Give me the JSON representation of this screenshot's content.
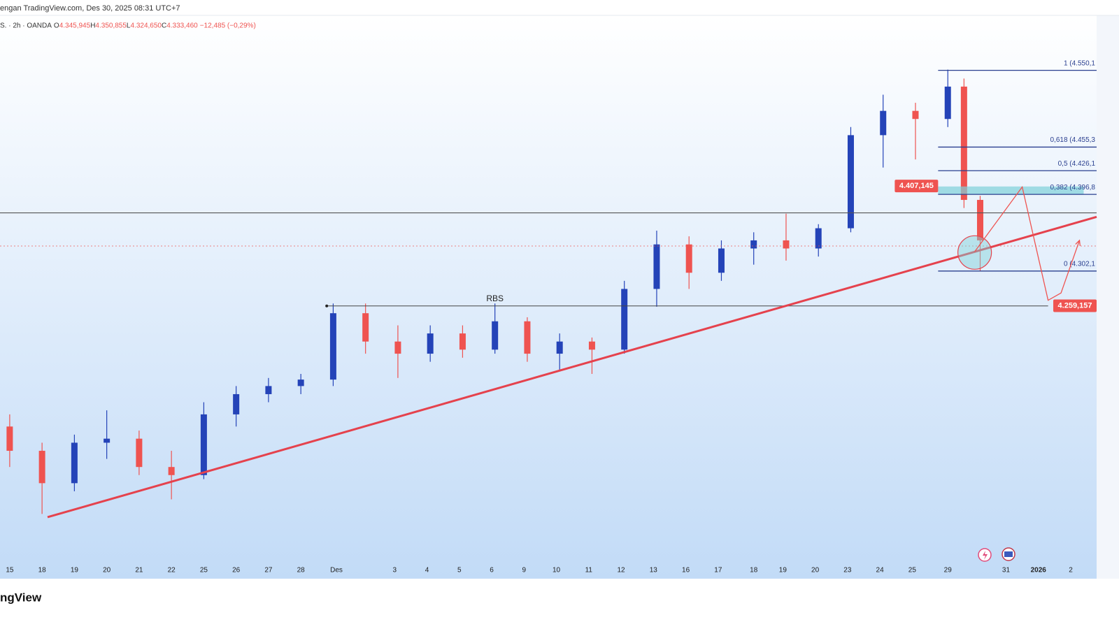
{
  "header": {
    "title": "engan TradingView.com, Des 30, 2025 08:31 UTC+7",
    "symbol": "S. · 2h · OANDA",
    "ohlc": [
      {
        "k": "O",
        "v": "4.345,945"
      },
      {
        "k": "H",
        "v": "4.350,855"
      },
      {
        "k": "L",
        "v": "4.324,650"
      },
      {
        "k": "C",
        "v": "4.333,460"
      }
    ],
    "change": "−12,485 (−0,29%)"
  },
  "footer": {
    "logo": "ngView"
  },
  "chart_data": {
    "type": "candlestick",
    "x": [
      0,
      1,
      2,
      3,
      4,
      5,
      6,
      7,
      8,
      9,
      10,
      11,
      12,
      13,
      14,
      15,
      16,
      17,
      18,
      19,
      20,
      21,
      22,
      23,
      24,
      25,
      26,
      27,
      28,
      29,
      29.5,
      30
    ],
    "open": [
      4110,
      4080,
      4040,
      4090,
      4095,
      4060,
      4050,
      4125,
      4150,
      4160,
      4168,
      4250,
      4215,
      4200,
      4225,
      4205,
      4240,
      4200,
      4215,
      4205,
      4280,
      4335,
      4300,
      4330,
      4340,
      4330,
      4355,
      4470,
      4500,
      4490,
      4530,
      4390
    ],
    "high": [
      4125,
      4090,
      4100,
      4130,
      4105,
      4080,
      4140,
      4160,
      4170,
      4175,
      4262,
      4262,
      4235,
      4235,
      4235,
      4262,
      4245,
      4225,
      4220,
      4290,
      4352,
      4345,
      4340,
      4350,
      4373,
      4360,
      4480,
      4520,
      4510,
      4551,
      4540,
      4395
    ],
    "low": [
      4060,
      4002,
      4030,
      4070,
      4050,
      4020,
      4045,
      4110,
      4140,
      4150,
      4160,
      4200,
      4170,
      4190,
      4195,
      4200,
      4190,
      4180,
      4175,
      4200,
      4258,
      4280,
      4290,
      4310,
      4315,
      4320,
      4350,
      4430,
      4440,
      4480,
      4380,
      4302
    ],
    "close": [
      4080,
      4040,
      4090,
      4095,
      4060,
      4050,
      4125,
      4150,
      4160,
      4168,
      4250,
      4215,
      4200,
      4225,
      4205,
      4240,
      4200,
      4215,
      4205,
      4280,
      4335,
      4300,
      4330,
      4340,
      4330,
      4355,
      4470,
      4500,
      4490,
      4530,
      4390,
      4340
    ],
    "up_color": "#2443b8",
    "down_color": "#ef5350",
    "xlim": [
      -0.3,
      33.6
    ],
    "ylim": [
      3922,
      4618
    ],
    "xticks": [
      {
        "value": 0,
        "label": "15"
      },
      {
        "value": 1,
        "label": "18"
      },
      {
        "value": 2,
        "label": "19"
      },
      {
        "value": 3,
        "label": "20"
      },
      {
        "value": 4,
        "label": "21"
      },
      {
        "value": 5,
        "label": "22"
      },
      {
        "value": 6,
        "label": "25"
      },
      {
        "value": 7,
        "label": "26"
      },
      {
        "value": 8,
        "label": "27"
      },
      {
        "value": 9,
        "label": "28"
      },
      {
        "value": 10.1,
        "label": "Des"
      },
      {
        "value": 11.9,
        "label": "3"
      },
      {
        "value": 12.9,
        "label": "4"
      },
      {
        "value": 13.9,
        "label": "5"
      },
      {
        "value": 14.9,
        "label": "6"
      },
      {
        "value": 15.9,
        "label": "9"
      },
      {
        "value": 16.9,
        "label": "10"
      },
      {
        "value": 17.9,
        "label": "11"
      },
      {
        "value": 18.9,
        "label": "12"
      },
      {
        "value": 19.9,
        "label": "13"
      },
      {
        "value": 20.9,
        "label": "16"
      },
      {
        "value": 21.9,
        "label": "17"
      },
      {
        "value": 23,
        "label": "18"
      },
      {
        "value": 23.9,
        "label": "19"
      },
      {
        "value": 24.9,
        "label": "20"
      },
      {
        "value": 25.9,
        "label": "23"
      },
      {
        "value": 26.9,
        "label": "24"
      },
      {
        "value": 27.9,
        "label": "25"
      },
      {
        "value": 29,
        "label": "29"
      },
      {
        "value": 30.8,
        "label": "31"
      },
      {
        "value": 31.8,
        "label": "2026"
      },
      {
        "value": 32.8,
        "label": "2"
      }
    ],
    "fib": {
      "from_x": 28.7,
      "color": "#2a3f8f",
      "levels": [
        {
          "value": 4550.1,
          "label": "1 (4.550,1"
        },
        {
          "value": 4455.3,
          "label": "0,618 (4.455,3"
        },
        {
          "value": 4426.1,
          "label": "0,5 (4.426,1"
        },
        {
          "value": 4396.8,
          "label": "0,382 (4.396,8"
        },
        {
          "value": 4302.1,
          "label": "0 (4.302,1"
        }
      ]
    },
    "resistance": {
      "value": 4374,
      "color": "#555555"
    },
    "rbs": {
      "value": 4259,
      "x": [
        9.8,
        32.1
      ],
      "label": "RBS",
      "label_x": 15
    },
    "trendline": {
      "x": [
        1.17,
        33.6
      ],
      "y": [
        3998,
        4369
      ],
      "color": "#e5424d"
    },
    "current_price": {
      "value": 4333,
      "color": "#ef5350"
    },
    "zone": {
      "x": [
        28.7,
        33.2
      ],
      "y": [
        4396.8,
        4406.6
      ],
      "color": "#7fd0d8"
    },
    "projection": {
      "x": [
        29.83,
        31.3,
        32.1,
        32.5,
        33.07
      ],
      "y": [
        4326,
        4406,
        4266,
        4275,
        4340
      ],
      "color": "#ef5350"
    },
    "price_tags": [
      {
        "value": 4407.145,
        "label": "4.407,145",
        "x": 28.7,
        "side": "left"
      },
      {
        "value": 4259.157,
        "label": "4.259,157",
        "x": 33.6,
        "side": "right"
      }
    ],
    "circle": {
      "x": 29.83,
      "y": 4325
    }
  }
}
